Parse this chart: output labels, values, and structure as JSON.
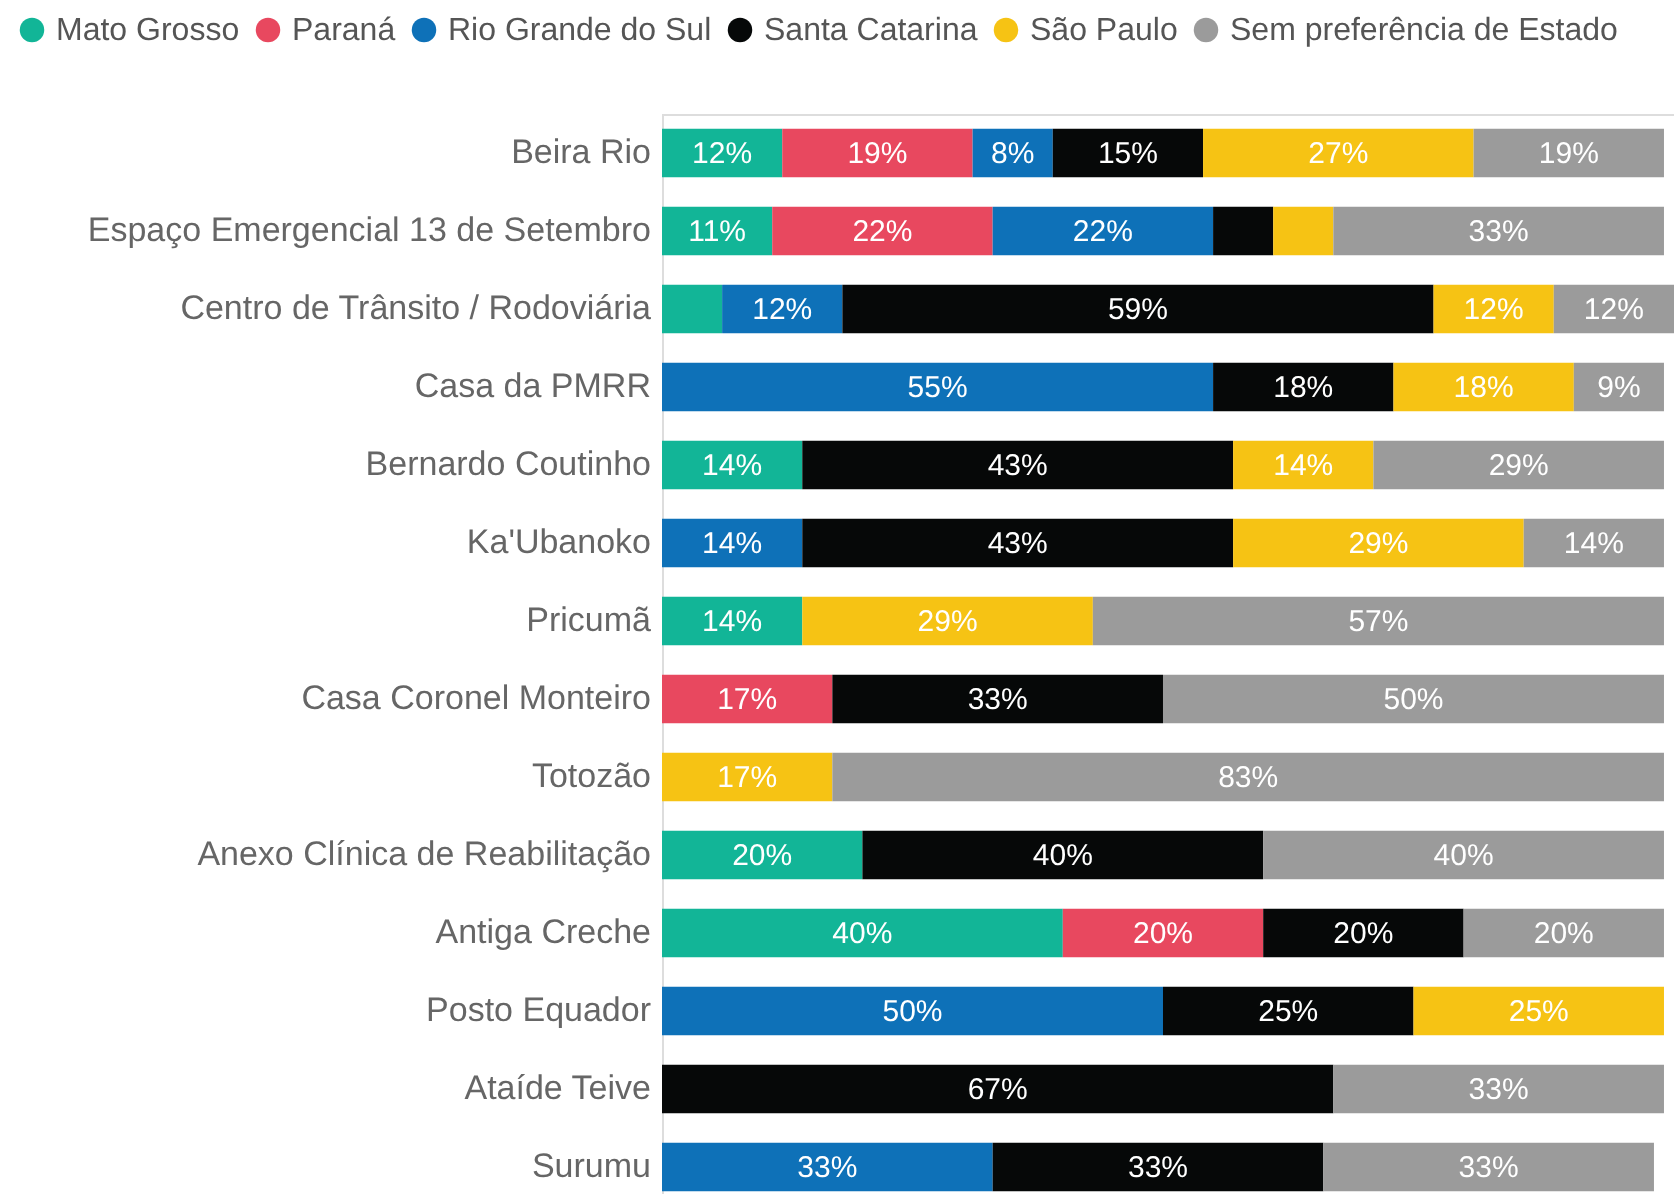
{
  "chart_data": {
    "type": "bar",
    "orientation": "horizontal",
    "stacked": true,
    "legend": "top left",
    "categories": [
      "Beira Rio",
      "Espaço Emergencial 13 de Setembro",
      "Centro de Trânsito / Rodoviária",
      "Casa da PMRR",
      "Bernardo Coutinho",
      "Ka'Ubanoko",
      "Pricumã",
      "Casa Coronel Monteiro",
      "Totozão",
      "Anexo Clínica de Reabilitação",
      "Antiga Creche",
      "Posto Equador",
      "Ataíde Teive",
      "Surumu"
    ],
    "series": [
      {
        "name": "Mato Grosso",
        "color": "#12b597",
        "values": [
          12,
          11,
          6,
          null,
          14,
          null,
          14,
          null,
          null,
          20,
          40,
          null,
          null,
          null
        ],
        "value_labels": [
          "12%",
          "11%",
          null,
          null,
          "14%",
          null,
          "14%",
          null,
          null,
          "20%",
          "40%",
          null,
          null,
          null
        ]
      },
      {
        "name": "Paraná",
        "color": "#e8485f",
        "values": [
          19,
          22,
          null,
          null,
          null,
          null,
          null,
          17,
          null,
          null,
          20,
          null,
          null,
          null
        ],
        "value_labels": [
          "19%",
          "22%",
          null,
          null,
          null,
          null,
          null,
          "17%",
          null,
          null,
          "20%",
          null,
          null,
          null
        ]
      },
      {
        "name": "Rio Grande do Sul",
        "color": "#0e71b8",
        "values": [
          8,
          22,
          12,
          55,
          null,
          14,
          null,
          null,
          null,
          null,
          null,
          50,
          null,
          33
        ],
        "value_labels": [
          "8%",
          "22%",
          "12%",
          "55%",
          null,
          "14%",
          null,
          null,
          null,
          null,
          null,
          "50%",
          null,
          "33%"
        ]
      },
      {
        "name": "Santa Catarina",
        "color": "#060808",
        "values": [
          15,
          6,
          59,
          18,
          43,
          43,
          null,
          33,
          null,
          40,
          20,
          25,
          67,
          33
        ],
        "value_labels": [
          "15%",
          null,
          "59%",
          "18%",
          "43%",
          "43%",
          null,
          "33%",
          null,
          "40%",
          "20%",
          "25%",
          "67%",
          "33%"
        ]
      },
      {
        "name": "São Paulo",
        "color": "#f6c314",
        "values": [
          27,
          6,
          12,
          18,
          14,
          29,
          29,
          null,
          17,
          null,
          null,
          25,
          null,
          null
        ],
        "value_labels": [
          "27%",
          null,
          "12%",
          "18%",
          "14%",
          "29%",
          "29%",
          null,
          "17%",
          null,
          null,
          "25%",
          null,
          null
        ]
      },
      {
        "name": "Sem preferência de Estado",
        "color": "#9b9b9b",
        "values": [
          19,
          33,
          12,
          9,
          29,
          14,
          57,
          50,
          83,
          40,
          20,
          null,
          33,
          33
        ],
        "value_labels": [
          "19%",
          "33%",
          "12%",
          "9%",
          "29%",
          "14%",
          "57%",
          "50%",
          "83%",
          "40%",
          "20%",
          null,
          "33%",
          "33%"
        ]
      }
    ]
  }
}
